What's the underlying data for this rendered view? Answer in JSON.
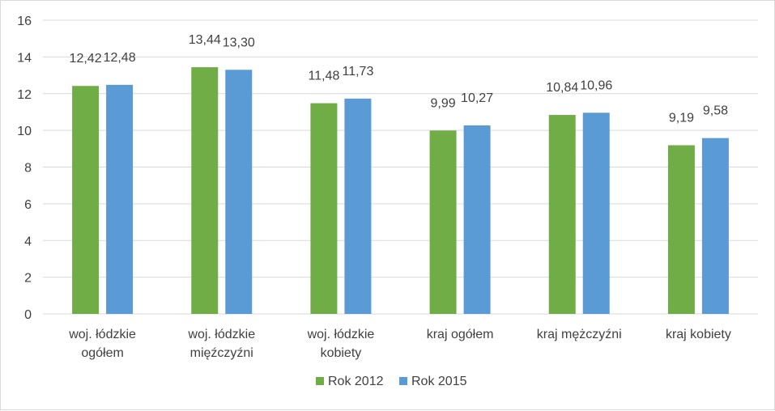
{
  "chart_data": {
    "type": "bar",
    "categories": [
      [
        "woj. łódzkie",
        "ogółem"
      ],
      [
        "woj. łódzkie",
        "mięźczyźni"
      ],
      [
        "woj. łódzkie",
        "kobiety"
      ],
      [
        "kraj ogółem"
      ],
      [
        "kraj mężczyźni"
      ],
      [
        "kraj kobiety"
      ]
    ],
    "series": [
      {
        "name": "Rok 2012",
        "color": "#70ad47",
        "values": [
          12.42,
          13.44,
          11.48,
          9.99,
          10.84,
          9.19
        ],
        "labels": [
          "12,42",
          "13,44",
          "11,48",
          "9,99",
          "10,84",
          "9,19"
        ]
      },
      {
        "name": "Rok 2015",
        "color": "#5b9bd5",
        "values": [
          12.48,
          13.3,
          11.73,
          10.27,
          10.96,
          9.58
        ],
        "labels": [
          "12,48",
          "13,30",
          "11,73",
          "10,27",
          "10,96",
          "9,58"
        ]
      }
    ],
    "ylim": [
      0,
      16
    ],
    "yticks": [
      0,
      2,
      4,
      6,
      8,
      10,
      12,
      14,
      16
    ],
    "grid": true,
    "legend": "bottom-center",
    "title": "",
    "xlabel": "",
    "ylabel": ""
  }
}
